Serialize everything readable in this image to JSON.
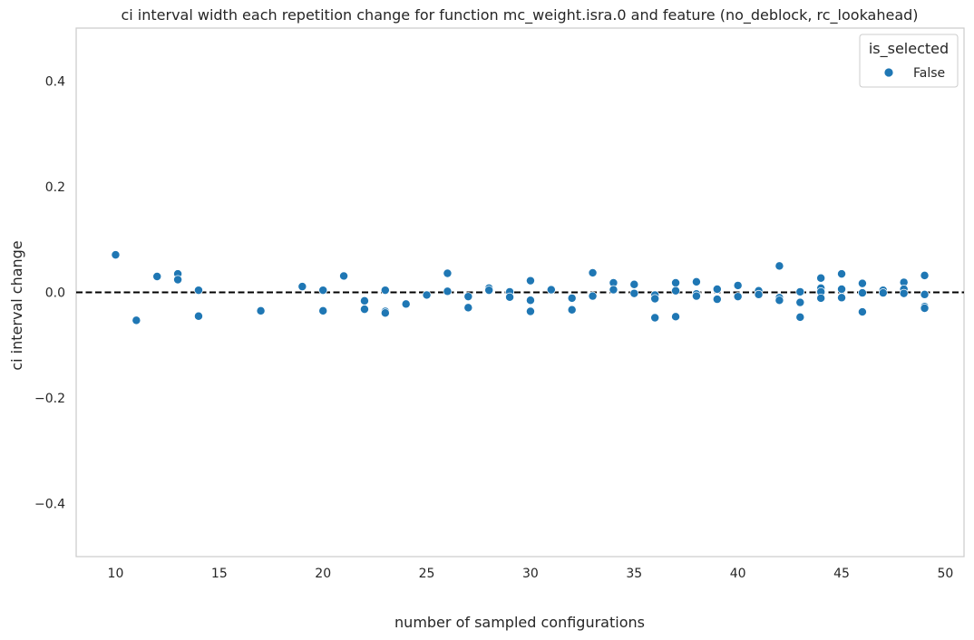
{
  "chart_data": {
    "type": "scatter",
    "title": "ci interval width each repetition change for function mc_weight.isra.0 and feature (no_deblock, rc_lookahead)",
    "xlabel": "number of sampled configurations",
    "ylabel": "ci interval change",
    "xlim": [
      8.1,
      50.9
    ],
    "ylim": [
      -0.5,
      0.5
    ],
    "xticks": [
      10,
      15,
      20,
      25,
      30,
      35,
      40,
      45,
      50
    ],
    "xtick_labels": [
      "10",
      "15",
      "20",
      "25",
      "30",
      "35",
      "40",
      "45",
      "50"
    ],
    "yticks": [
      0.4,
      0.2,
      0.0,
      -0.2,
      -0.4
    ],
    "ytick_labels": [
      "0.4",
      "0.2",
      "0.0",
      "−0.2",
      "−0.4"
    ],
    "reference_line": 0.0,
    "grid": false,
    "legend": {
      "title": "is_selected",
      "placement": "top-right"
    },
    "series": [
      {
        "name": "False",
        "color": "#1f77b4",
        "points": [
          [
            10,
            0.071
          ],
          [
            11,
            -0.053
          ],
          [
            12,
            0.03
          ],
          [
            13,
            0.035
          ],
          [
            13,
            0.024
          ],
          [
            14,
            0.004
          ],
          [
            14,
            -0.045
          ],
          [
            17,
            -0.035
          ],
          [
            19,
            0.011
          ],
          [
            20,
            0.004
          ],
          [
            20,
            -0.035
          ],
          [
            21,
            0.031
          ],
          [
            22,
            -0.016
          ],
          [
            22,
            -0.032
          ],
          [
            23,
            0.004
          ],
          [
            23,
            -0.036
          ],
          [
            23,
            -0.039
          ],
          [
            24,
            -0.022
          ],
          [
            25,
            -0.005
          ],
          [
            26,
            0.036
          ],
          [
            26,
            0.002
          ],
          [
            27,
            -0.008
          ],
          [
            27,
            -0.029
          ],
          [
            28,
            0.008
          ],
          [
            28,
            0.004
          ],
          [
            29,
            0.001
          ],
          [
            29,
            -0.009
          ],
          [
            30,
            0.022
          ],
          [
            30,
            -0.015
          ],
          [
            30,
            -0.036
          ],
          [
            31,
            0.005
          ],
          [
            32,
            -0.011
          ],
          [
            32,
            -0.033
          ],
          [
            33,
            0.037
          ],
          [
            33,
            -0.007
          ],
          [
            34,
            0.018
          ],
          [
            34,
            0.005
          ],
          [
            35,
            0.015
          ],
          [
            35,
            -0.002
          ],
          [
            36,
            -0.005
          ],
          [
            36,
            -0.012
          ],
          [
            36,
            -0.048
          ],
          [
            37,
            0.018
          ],
          [
            37,
            0.003
          ],
          [
            37,
            -0.046
          ],
          [
            38,
            0.02
          ],
          [
            38,
            -0.003
          ],
          [
            38,
            -0.007
          ],
          [
            39,
            0.006
          ],
          [
            39,
            -0.013
          ],
          [
            40,
            0.013
          ],
          [
            40,
            -0.008
          ],
          [
            41,
            0.003
          ],
          [
            41,
            -0.004
          ],
          [
            42,
            0.05
          ],
          [
            42,
            -0.01
          ],
          [
            42,
            -0.015
          ],
          [
            43,
            0.001
          ],
          [
            43,
            -0.019
          ],
          [
            43,
            -0.047
          ],
          [
            44,
            0.027
          ],
          [
            44,
            0.008
          ],
          [
            44,
            0.001
          ],
          [
            44,
            -0.011
          ],
          [
            45,
            0.035
          ],
          [
            45,
            0.006
          ],
          [
            45,
            -0.01
          ],
          [
            46,
            0.017
          ],
          [
            46,
            -0.001
          ],
          [
            46,
            -0.037
          ],
          [
            47,
            0.004
          ],
          [
            47,
            -0.001
          ],
          [
            48,
            0.019
          ],
          [
            48,
            0.006
          ],
          [
            48,
            -0.002
          ],
          [
            49,
            0.032
          ],
          [
            49,
            -0.004
          ],
          [
            49,
            -0.027
          ],
          [
            49,
            -0.03
          ]
        ]
      }
    ]
  }
}
